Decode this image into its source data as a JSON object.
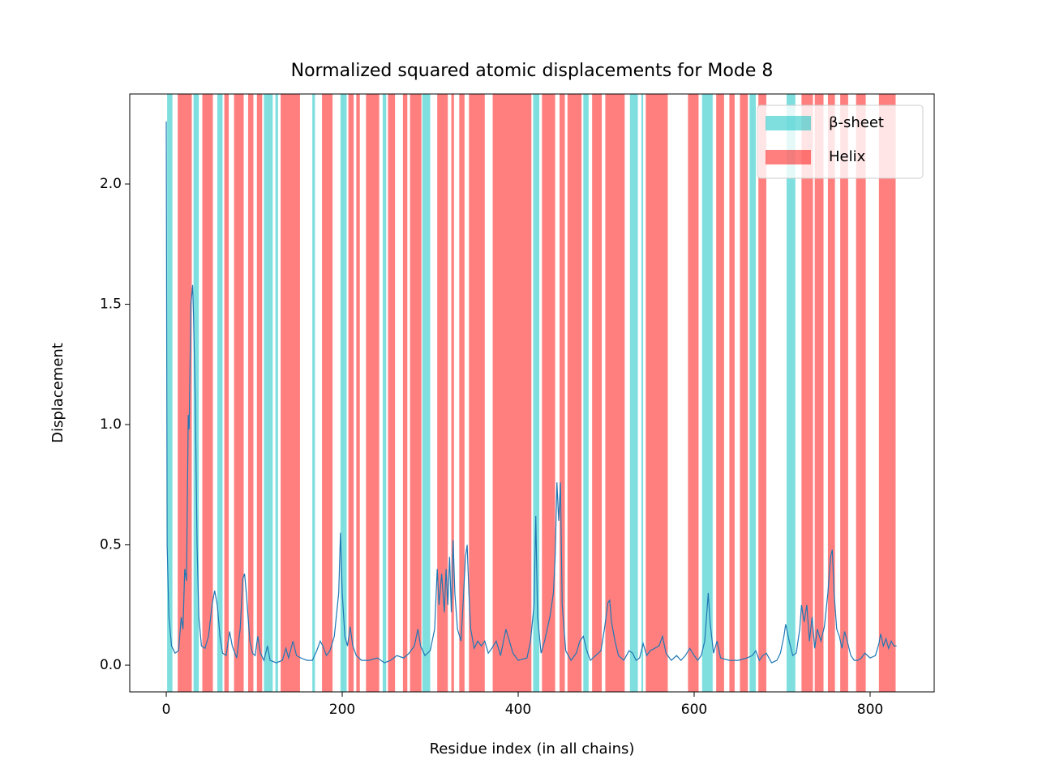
{
  "chart_data": {
    "type": "line",
    "title": "Normalized squared atomic displacements for Mode 8",
    "xlabel": "Residue index (in all chains)",
    "ylabel": "Displacement",
    "xlim": [
      -41.5,
      872.8
    ],
    "ylim": [
      -0.111,
      2.374
    ],
    "xticks": [
      0,
      200,
      400,
      600,
      800
    ],
    "yticks": [
      {
        "value": 0,
        "label": "0.0"
      },
      0.5,
      {
        "value": 1,
        "label": "1.0"
      },
      1.5,
      {
        "value": 2,
        "label": "2.0"
      }
    ],
    "line_color": "#1f77b4",
    "legend": "upper right",
    "span_alpha": 0.5,
    "regions": [
      {
        "name": "β-sheet",
        "color": "#00bfbf",
        "spans": [
          [
            1,
            7
          ],
          [
            31,
            37
          ],
          [
            58,
            64
          ],
          [
            111,
            121
          ],
          [
            124,
            127
          ],
          [
            166,
            169
          ],
          [
            198,
            205
          ],
          [
            246,
            250
          ],
          [
            291,
            300
          ],
          [
            417,
            424
          ],
          [
            474,
            480
          ],
          [
            527,
            536
          ],
          [
            540,
            542
          ],
          [
            609,
            621
          ],
          [
            663,
            670
          ],
          [
            705,
            715
          ]
        ]
      },
      {
        "name": "Helix",
        "color": "#ff0000",
        "spans": [
          [
            13,
            29
          ],
          [
            41,
            53
          ],
          [
            66,
            71
          ],
          [
            77,
            88
          ],
          [
            93,
            99
          ],
          [
            103,
            109
          ],
          [
            130,
            152
          ],
          [
            177,
            189
          ],
          [
            207,
            213
          ],
          [
            216,
            220
          ],
          [
            227,
            242
          ],
          [
            252,
            260
          ],
          [
            269,
            274
          ],
          [
            277,
            290
          ],
          [
            308,
            320
          ],
          [
            324,
            327
          ],
          [
            333,
            339
          ],
          [
            344,
            362
          ],
          [
            371,
            415
          ],
          [
            427,
            442
          ],
          [
            447,
            453
          ],
          [
            456,
            472
          ],
          [
            484,
            495
          ],
          [
            499,
            521
          ],
          [
            545,
            570
          ],
          [
            593,
            605
          ],
          [
            625,
            634
          ],
          [
            640,
            646
          ],
          [
            652,
            661
          ],
          [
            673,
            682
          ],
          [
            722,
            735
          ],
          [
            737,
            747
          ],
          [
            752,
            760
          ],
          [
            766,
            775
          ],
          [
            784,
            795
          ],
          [
            810,
            829
          ]
        ]
      }
    ],
    "x": [
      0,
      1,
      3,
      6,
      10,
      14,
      17,
      19,
      21,
      23,
      25,
      26,
      28,
      30,
      31,
      33,
      35,
      37,
      40,
      44,
      48,
      52,
      55,
      58,
      61,
      64,
      68,
      72,
      75,
      80,
      84,
      87,
      89,
      91,
      93,
      95,
      98,
      101,
      104,
      107,
      111,
      115,
      118,
      125,
      132,
      136,
      139,
      144,
      148,
      153,
      160,
      166,
      171,
      175,
      178,
      182,
      186,
      191,
      196,
      198,
      200,
      203,
      206,
      209,
      212,
      216,
      222,
      230,
      240,
      248,
      255,
      262,
      270,
      276,
      282,
      286,
      289,
      294,
      300,
      305,
      308,
      310,
      313,
      316,
      318,
      320,
      322,
      324,
      326,
      328,
      331,
      335,
      338,
      340,
      342,
      344,
      346,
      350,
      354,
      358,
      362,
      366,
      370,
      375,
      380,
      386,
      390,
      394,
      400,
      410,
      414,
      418,
      420,
      422,
      426,
      430,
      436,
      440,
      442,
      444,
      446,
      448,
      450,
      454,
      460,
      466,
      470,
      474,
      478,
      482,
      488,
      494,
      498,
      502,
      504,
      506,
      510,
      514,
      520,
      526,
      530,
      534,
      538,
      542,
      546,
      550,
      555,
      560,
      564,
      568,
      574,
      580,
      585,
      590,
      595,
      600,
      604,
      608,
      612,
      616,
      618,
      622,
      626,
      630,
      640,
      650,
      660,
      666,
      670,
      674,
      678,
      682,
      688,
      694,
      698,
      702,
      704,
      708,
      712,
      716,
      720,
      722,
      725,
      728,
      731,
      734,
      737,
      740,
      744,
      748,
      752,
      755,
      757,
      759,
      762,
      765,
      768,
      771,
      774,
      778,
      782,
      786,
      790,
      794,
      800,
      806,
      810,
      812,
      815,
      818,
      821,
      824,
      827,
      830
    ],
    "values": [
      2.26,
      0.5,
      0.2,
      0.08,
      0.05,
      0.06,
      0.2,
      0.15,
      0.4,
      0.35,
      1.04,
      0.98,
      1.5,
      1.58,
      1.45,
      1.1,
      0.5,
      0.2,
      0.08,
      0.07,
      0.12,
      0.25,
      0.31,
      0.25,
      0.12,
      0.05,
      0.04,
      0.14,
      0.08,
      0.03,
      0.15,
      0.36,
      0.38,
      0.3,
      0.2,
      0.1,
      0.05,
      0.04,
      0.12,
      0.05,
      0.02,
      0.08,
      0.02,
      0.01,
      0.02,
      0.07,
      0.03,
      0.1,
      0.04,
      0.03,
      0.02,
      0.02,
      0.06,
      0.1,
      0.08,
      0.04,
      0.06,
      0.12,
      0.3,
      0.55,
      0.3,
      0.12,
      0.08,
      0.16,
      0.08,
      0.04,
      0.02,
      0.02,
      0.03,
      0.01,
      0.02,
      0.04,
      0.03,
      0.05,
      0.08,
      0.15,
      0.08,
      0.04,
      0.06,
      0.15,
      0.4,
      0.25,
      0.38,
      0.22,
      0.4,
      0.25,
      0.45,
      0.22,
      0.52,
      0.3,
      0.15,
      0.1,
      0.3,
      0.45,
      0.5,
      0.3,
      0.15,
      0.07,
      0.1,
      0.08,
      0.1,
      0.05,
      0.07,
      0.1,
      0.04,
      0.15,
      0.1,
      0.05,
      0.02,
      0.03,
      0.1,
      0.25,
      0.62,
      0.2,
      0.05,
      0.1,
      0.2,
      0.3,
      0.45,
      0.76,
      0.6,
      0.76,
      0.25,
      0.06,
      0.02,
      0.05,
      0.1,
      0.12,
      0.06,
      0.02,
      0.04,
      0.06,
      0.15,
      0.26,
      0.27,
      0.18,
      0.1,
      0.04,
      0.02,
      0.06,
      0.05,
      0.02,
      0.03,
      0.09,
      0.04,
      0.06,
      0.07,
      0.08,
      0.12,
      0.05,
      0.02,
      0.04,
      0.02,
      0.04,
      0.07,
      0.04,
      0.02,
      0.04,
      0.1,
      0.3,
      0.18,
      0.05,
      0.1,
      0.03,
      0.02,
      0.02,
      0.03,
      0.04,
      0.06,
      0.02,
      0.04,
      0.05,
      0.01,
      0.02,
      0.05,
      0.12,
      0.17,
      0.1,
      0.04,
      0.05,
      0.15,
      0.25,
      0.18,
      0.25,
      0.1,
      0.2,
      0.07,
      0.15,
      0.1,
      0.16,
      0.3,
      0.45,
      0.48,
      0.3,
      0.15,
      0.12,
      0.07,
      0.14,
      0.1,
      0.04,
      0.02,
      0.02,
      0.03,
      0.05,
      0.03,
      0.04,
      0.09,
      0.13,
      0.08,
      0.11,
      0.07,
      0.1,
      0.08,
      0.08
    ]
  }
}
